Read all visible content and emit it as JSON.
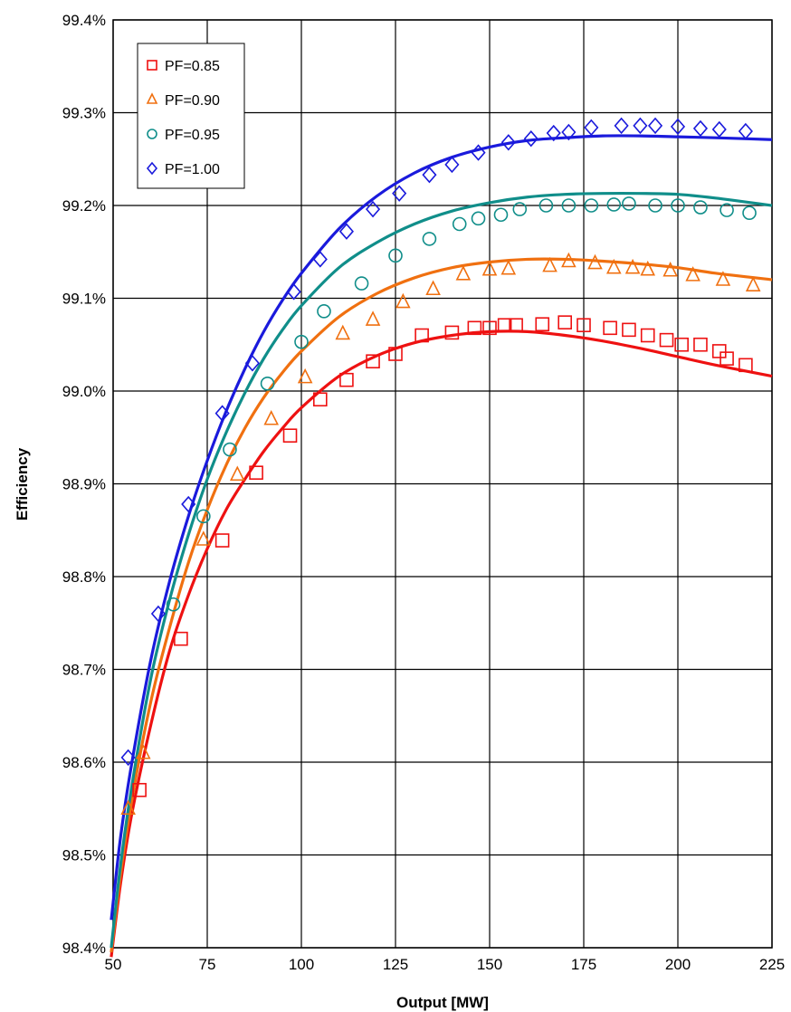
{
  "chart_data": {
    "type": "scatter",
    "xlabel": "Output [MW]",
    "ylabel": "Efficiency",
    "xlim": [
      50,
      225
    ],
    "ylim": [
      98.4,
      99.4
    ],
    "x_ticks": [
      "50",
      "75",
      "100",
      "125",
      "150",
      "175",
      "200",
      "225"
    ],
    "y_ticks": [
      "98.4%",
      "98.5%",
      "98.6%",
      "98.7%",
      "98.8%",
      "98.9%",
      "99.0%",
      "99.1%",
      "99.2%",
      "99.3%",
      "99.4%"
    ],
    "grid": true,
    "legend_position": "top-left",
    "series": [
      {
        "name": "PF=0.85",
        "color": "#ee1111",
        "marker": "square",
        "points": [
          [
            57,
            98.57
          ],
          [
            68,
            98.733
          ],
          [
            79,
            98.839
          ],
          [
            88,
            98.912
          ],
          [
            97,
            98.952
          ],
          [
            105,
            98.991
          ],
          [
            112,
            99.012
          ],
          [
            119,
            99.032
          ],
          [
            125,
            99.04
          ],
          [
            132,
            99.06
          ],
          [
            140,
            99.063
          ],
          [
            146,
            99.068
          ],
          [
            150,
            99.068
          ],
          [
            154,
            99.071
          ],
          [
            157,
            99.071
          ],
          [
            164,
            99.072
          ],
          [
            170,
            99.074
          ],
          [
            175,
            99.071
          ],
          [
            182,
            99.068
          ],
          [
            187,
            99.066
          ],
          [
            192,
            99.06
          ],
          [
            197,
            99.055
          ],
          [
            201,
            99.05
          ],
          [
            206,
            99.05
          ],
          [
            211,
            99.043
          ],
          [
            213,
            99.035
          ],
          [
            218,
            99.028
          ]
        ],
        "fit": [
          [
            49.5,
            98.39
          ],
          [
            52,
            98.47
          ],
          [
            55,
            98.545
          ],
          [
            60,
            98.64
          ],
          [
            65,
            98.72
          ],
          [
            70,
            98.78
          ],
          [
            75,
            98.83
          ],
          [
            80,
            98.872
          ],
          [
            85,
            98.905
          ],
          [
            90,
            98.935
          ],
          [
            95,
            98.96
          ],
          [
            100,
            98.982
          ],
          [
            110,
            99.016
          ],
          [
            120,
            99.038
          ],
          [
            130,
            99.052
          ],
          [
            140,
            99.06
          ],
          [
            150,
            99.064
          ],
          [
            160,
            99.064
          ],
          [
            170,
            99.06
          ],
          [
            180,
            99.054
          ],
          [
            190,
            99.046
          ],
          [
            200,
            99.037
          ],
          [
            210,
            99.028
          ],
          [
            225,
            99.016
          ]
        ]
      },
      {
        "name": "PF=0.90",
        "color": "#f07010",
        "marker": "triangle",
        "points": [
          [
            54,
            98.55
          ],
          [
            58,
            98.61
          ],
          [
            74,
            98.84
          ],
          [
            83,
            98.91
          ],
          [
            92,
            98.97
          ],
          [
            101,
            99.015
          ],
          [
            111,
            99.062
          ],
          [
            119,
            99.077
          ],
          [
            127,
            99.096
          ],
          [
            135,
            99.11
          ],
          [
            143,
            99.126
          ],
          [
            150,
            99.131
          ],
          [
            155,
            99.132
          ],
          [
            166,
            99.135
          ],
          [
            171,
            99.14
          ],
          [
            178,
            99.138
          ],
          [
            183,
            99.133
          ],
          [
            188,
            99.133
          ],
          [
            192,
            99.131
          ],
          [
            198,
            99.13
          ],
          [
            204,
            99.125
          ],
          [
            212,
            99.12
          ],
          [
            220,
            99.114
          ]
        ],
        "fit": [
          [
            49.5,
            98.395
          ],
          [
            52,
            98.48
          ],
          [
            55,
            98.56
          ],
          [
            60,
            98.665
          ],
          [
            65,
            98.745
          ],
          [
            70,
            98.815
          ],
          [
            75,
            98.872
          ],
          [
            80,
            98.92
          ],
          [
            85,
            98.96
          ],
          [
            90,
            98.993
          ],
          [
            95,
            99.02
          ],
          [
            100,
            99.043
          ],
          [
            110,
            99.08
          ],
          [
            120,
            99.105
          ],
          [
            130,
            99.122
          ],
          [
            140,
            99.133
          ],
          [
            150,
            99.139
          ],
          [
            160,
            99.142
          ],
          [
            170,
            99.142
          ],
          [
            180,
            99.14
          ],
          [
            190,
            99.137
          ],
          [
            200,
            99.133
          ],
          [
            210,
            99.127
          ],
          [
            225,
            99.12
          ]
        ]
      },
      {
        "name": "PF=0.95",
        "color": "#108e8a",
        "marker": "circle",
        "points": [
          [
            74,
            98.865
          ],
          [
            66,
            98.77
          ],
          [
            81,
            98.937
          ],
          [
            91,
            99.008
          ],
          [
            100,
            99.053
          ],
          [
            106,
            99.086
          ],
          [
            116,
            99.116
          ],
          [
            125,
            99.146
          ],
          [
            134,
            99.164
          ],
          [
            142,
            99.18
          ],
          [
            147,
            99.186
          ],
          [
            153,
            99.19
          ],
          [
            158,
            99.196
          ],
          [
            165,
            99.2
          ],
          [
            171,
            99.2
          ],
          [
            177,
            99.2
          ],
          [
            183,
            99.201
          ],
          [
            187,
            99.202
          ],
          [
            194,
            99.2
          ],
          [
            200,
            99.2
          ],
          [
            206,
            99.198
          ],
          [
            213,
            99.195
          ],
          [
            219,
            99.192
          ]
        ],
        "fit": [
          [
            49.5,
            98.4
          ],
          [
            52,
            98.49
          ],
          [
            55,
            98.575
          ],
          [
            60,
            98.69
          ],
          [
            65,
            98.775
          ],
          [
            70,
            98.845
          ],
          [
            75,
            98.905
          ],
          [
            80,
            98.955
          ],
          [
            85,
            98.998
          ],
          [
            90,
            99.035
          ],
          [
            95,
            99.066
          ],
          [
            100,
            99.092
          ],
          [
            110,
            99.133
          ],
          [
            120,
            99.16
          ],
          [
            130,
            99.18
          ],
          [
            140,
            99.194
          ],
          [
            150,
            99.203
          ],
          [
            160,
            99.209
          ],
          [
            170,
            99.212
          ],
          [
            180,
            99.213
          ],
          [
            190,
            99.213
          ],
          [
            200,
            99.212
          ],
          [
            210,
            99.208
          ],
          [
            225,
            99.2
          ]
        ]
      },
      {
        "name": "PF=1.00",
        "color": "#1a1adc",
        "marker": "diamond",
        "points": [
          [
            54,
            98.605
          ],
          [
            62,
            98.76
          ],
          [
            70,
            98.878
          ],
          [
            79,
            98.976
          ],
          [
            87,
            99.03
          ],
          [
            98,
            99.107
          ],
          [
            105,
            99.142
          ],
          [
            112,
            99.172
          ],
          [
            119,
            99.196
          ],
          [
            126,
            99.213
          ],
          [
            134,
            99.233
          ],
          [
            140,
            99.244
          ],
          [
            147,
            99.257
          ],
          [
            155,
            99.268
          ],
          [
            161,
            99.272
          ],
          [
            167,
            99.278
          ],
          [
            171,
            99.279
          ],
          [
            177,
            99.284
          ],
          [
            185,
            99.286
          ],
          [
            190,
            99.286
          ],
          [
            194,
            99.286
          ],
          [
            200,
            99.285
          ],
          [
            206,
            99.283
          ],
          [
            211,
            99.282
          ],
          [
            218,
            99.28
          ]
        ],
        "fit": [
          [
            49.5,
            98.43
          ],
          [
            52,
            98.52
          ],
          [
            55,
            98.6
          ],
          [
            60,
            98.71
          ],
          [
            65,
            98.795
          ],
          [
            70,
            98.865
          ],
          [
            75,
            98.925
          ],
          [
            80,
            98.978
          ],
          [
            85,
            99.024
          ],
          [
            90,
            99.064
          ],
          [
            95,
            99.098
          ],
          [
            100,
            99.127
          ],
          [
            110,
            99.175
          ],
          [
            120,
            99.21
          ],
          [
            130,
            99.235
          ],
          [
            140,
            99.252
          ],
          [
            150,
            99.263
          ],
          [
            160,
            99.27
          ],
          [
            170,
            99.273
          ],
          [
            180,
            99.275
          ],
          [
            190,
            99.275
          ],
          [
            200,
            99.274
          ],
          [
            210,
            99.273
          ],
          [
            225,
            99.271
          ]
        ]
      }
    ]
  }
}
